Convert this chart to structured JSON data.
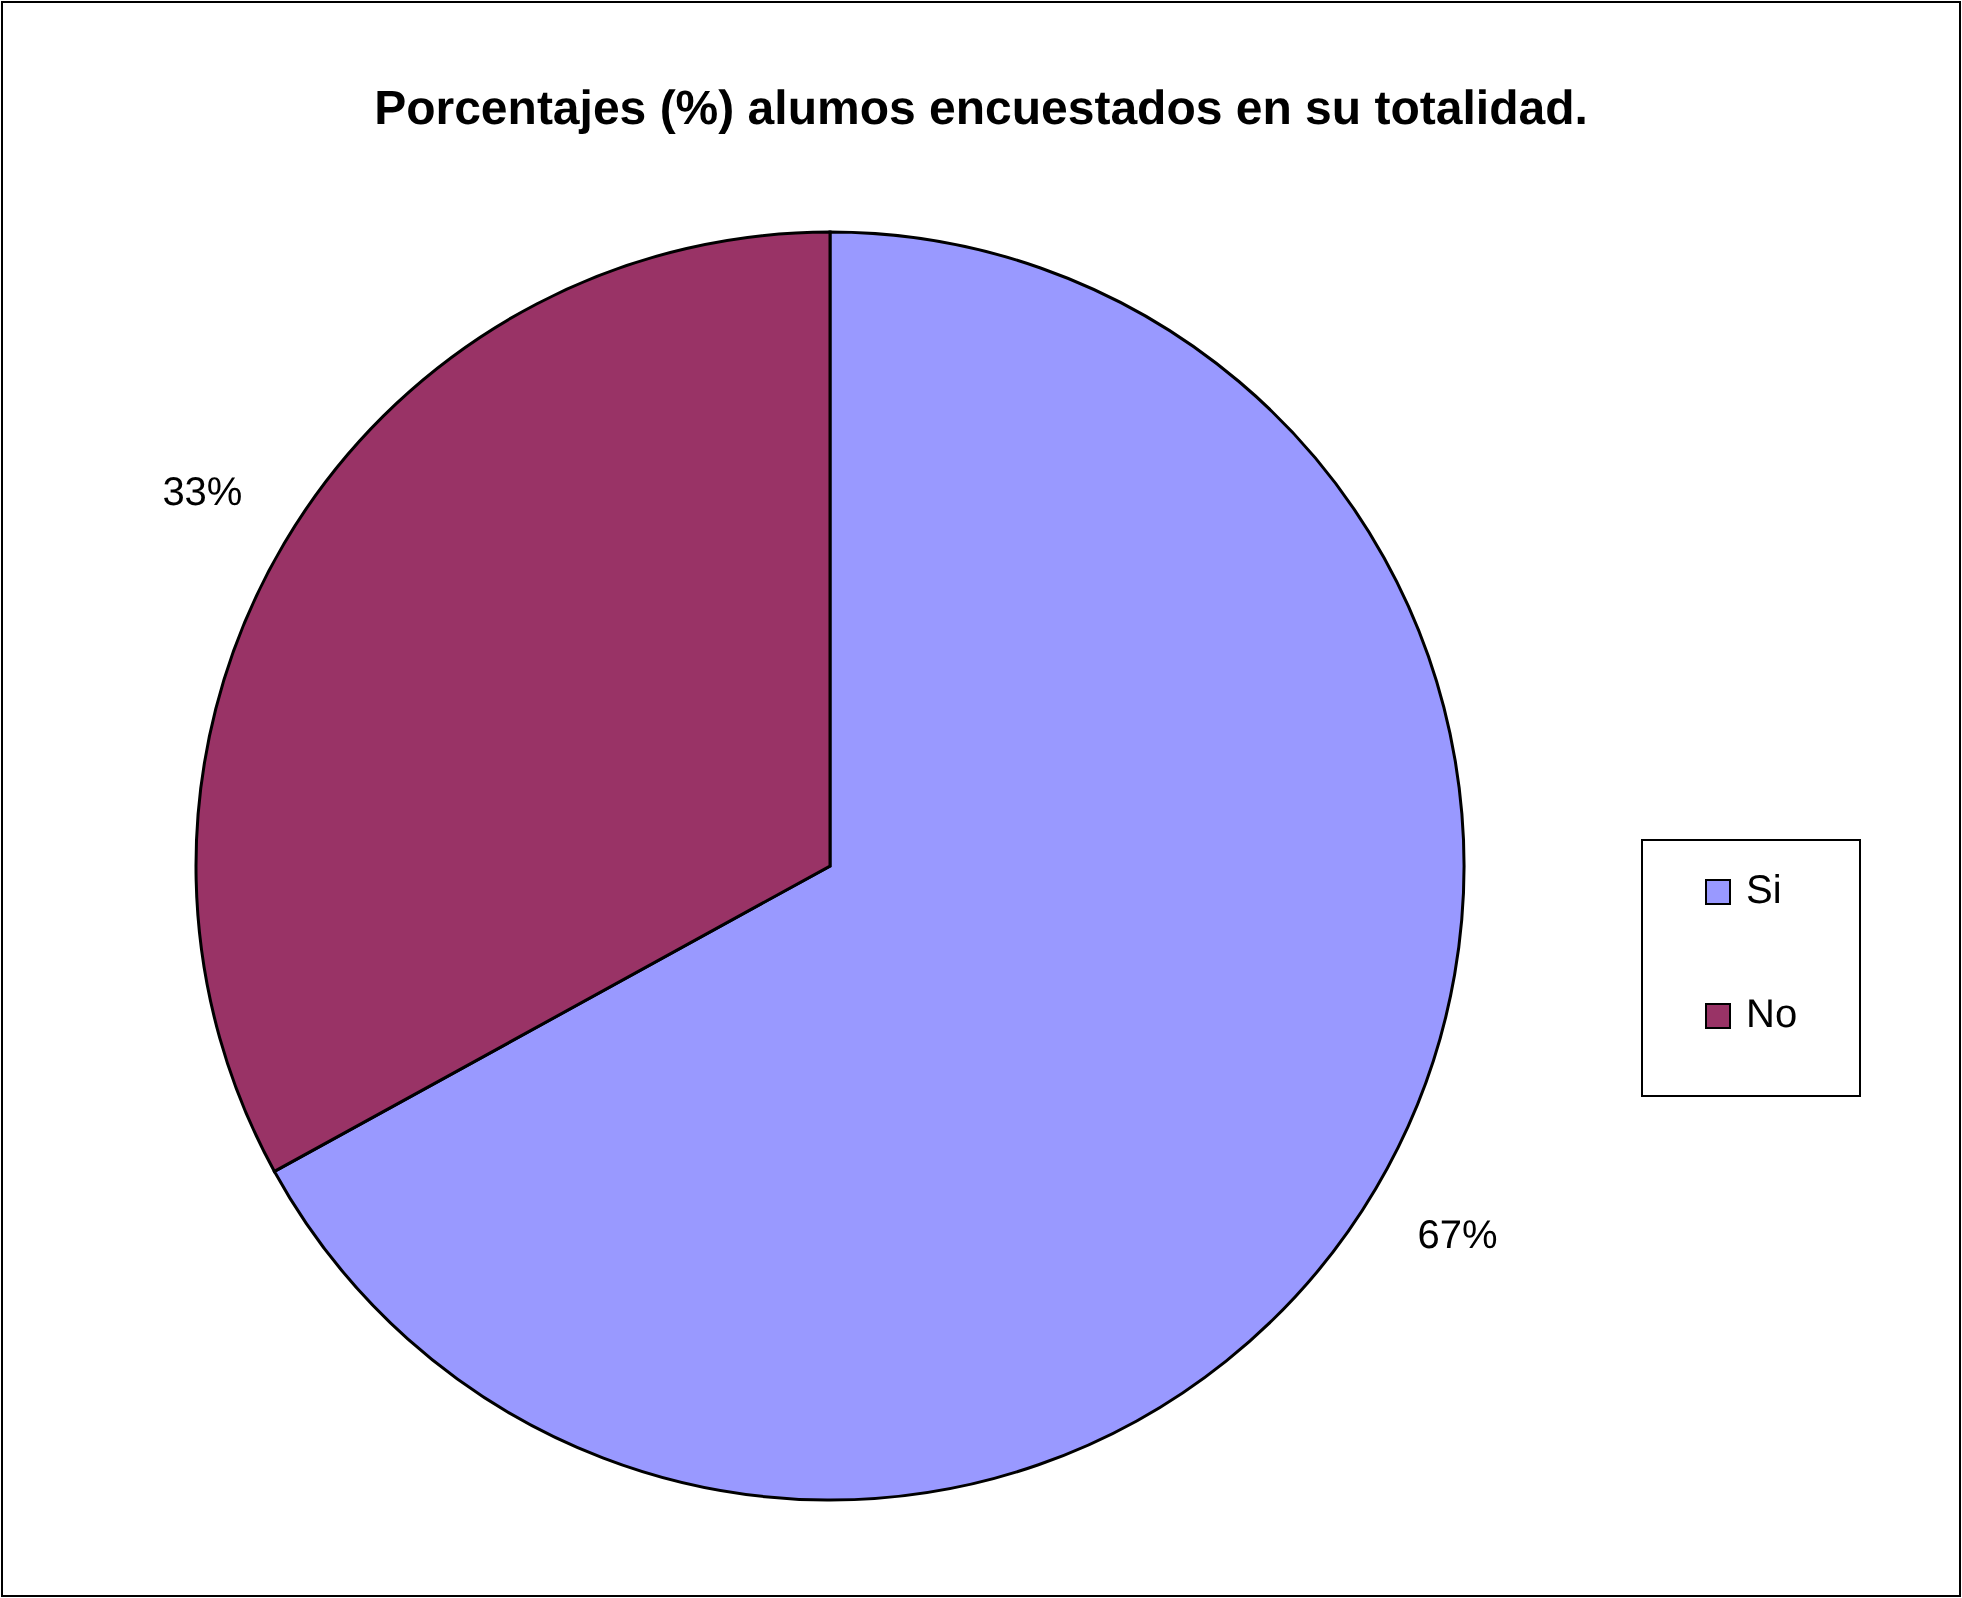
{
  "chart_data": {
    "type": "pie",
    "title": "Porcentajes (%) alumos encuestados en su totalidad.",
    "categories": [
      "Si",
      "No"
    ],
    "values": [
      67,
      33
    ],
    "colors": [
      "#9999ff",
      "#993366"
    ],
    "value_labels": [
      "67%",
      "33%"
    ],
    "legend": "right"
  }
}
